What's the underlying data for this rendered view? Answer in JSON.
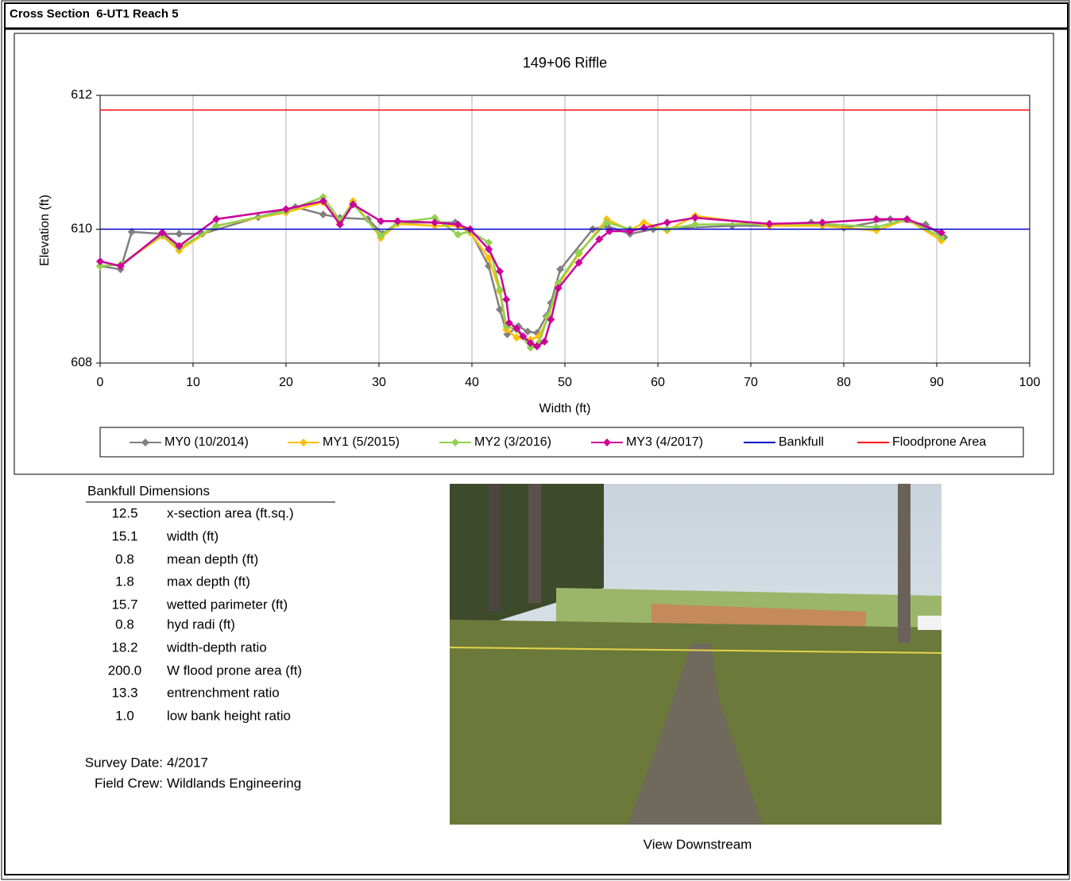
{
  "header": {
    "title": "Cross Section  6-UT1 Reach 5"
  },
  "chart_data": {
    "type": "line",
    "title": "149+06 Riffle",
    "x_label": "Width (ft)",
    "y_label": "Elevation (ft)",
    "xlim": [
      0,
      100
    ],
    "xticks": [
      0,
      10,
      20,
      30,
      40,
      50,
      60,
      70,
      80,
      90,
      100
    ],
    "ylim": [
      608,
      612
    ],
    "yticks": [
      608,
      610,
      612
    ],
    "grid": "x",
    "legend": "bottom",
    "series": [
      {
        "name": "MY0 (10/2014)",
        "color": "#808080",
        "marker": "diamond",
        "x": [
          0,
          2.2,
          3.4,
          6.7,
          8.5,
          11,
          17,
          21,
          24,
          25.8,
          28.8,
          30.4,
          32,
          38.2,
          39.8,
          41.8,
          43,
          43.8,
          45,
          46,
          47,
          48,
          48.5,
          49.5,
          53,
          54.5,
          57,
          59.5,
          68,
          72,
          76.5,
          80,
          85,
          88.8,
          90.8
        ],
        "values": [
          609.45,
          609.4,
          609.96,
          609.93,
          609.93,
          609.93,
          610.18,
          610.33,
          610.22,
          610.17,
          610.15,
          609.93,
          610.1,
          610.1,
          609.98,
          609.45,
          608.8,
          608.43,
          608.55,
          608.47,
          608.45,
          608.7,
          608.9,
          609.4,
          610.0,
          610.05,
          609.93,
          610.0,
          610.05,
          610.05,
          610.1,
          610.02,
          610.15,
          610.07,
          609.88
        ]
      },
      {
        "name": "MY1 (5/2015)",
        "color": "#ffc000",
        "marker": "diamond",
        "x": [
          0,
          2.2,
          6.7,
          8.5,
          12.5,
          20,
          24,
          25.8,
          27.2,
          30.2,
          32,
          36,
          38.5,
          39.8,
          41.8,
          43,
          43.7,
          44.8,
          46.3,
          47.2,
          48.2,
          49.3,
          51.5,
          54.5,
          57,
          58.5,
          61,
          64,
          72,
          77.7,
          83.5,
          86.8,
          90.5
        ],
        "values": [
          609.45,
          609.47,
          609.9,
          609.68,
          610.05,
          610.25,
          610.4,
          610.1,
          610.42,
          609.87,
          610.08,
          610.05,
          610.05,
          609.95,
          609.57,
          609.07,
          608.5,
          608.38,
          608.35,
          608.4,
          608.68,
          609.17,
          609.63,
          610.15,
          609.98,
          610.1,
          609.98,
          610.2,
          610.05,
          610.05,
          609.98,
          610.15,
          609.83
        ]
      },
      {
        "name": "MY2 (3/2016)",
        "color": "#92d050",
        "marker": "diamond",
        "x": [
          0,
          2.2,
          6.7,
          8.5,
          12.5,
          20,
          24,
          25.8,
          27.2,
          30.2,
          32,
          36,
          38.5,
          39.8,
          41.8,
          43,
          43.7,
          44.8,
          46.3,
          47.2,
          48.2,
          49.3,
          51.5,
          54.5,
          57,
          61,
          64,
          72,
          77.7,
          83.5,
          86.8,
          90.5
        ],
        "values": [
          609.45,
          609.47,
          609.92,
          609.72,
          610.05,
          610.27,
          610.48,
          610.13,
          610.38,
          609.9,
          610.1,
          610.17,
          609.92,
          609.97,
          609.8,
          609.1,
          608.55,
          608.5,
          608.23,
          608.3,
          608.7,
          609.2,
          609.65,
          610.1,
          610.0,
          610.0,
          610.07,
          610.08,
          610.08,
          610.03,
          610.15,
          609.88
        ]
      },
      {
        "name": "MY3 (4/2017)",
        "color": "#cc0099",
        "marker": "diamond",
        "x": [
          0,
          2.2,
          6.7,
          8.5,
          12.5,
          20,
          24,
          25.8,
          27.2,
          30.2,
          32,
          36,
          38.5,
          39.8,
          41.8,
          43,
          43.7,
          44,
          44.8,
          45.5,
          46.3,
          47,
          47.8,
          48.5,
          49.3,
          51.5,
          53.7,
          54.8,
          57,
          58.5,
          61,
          64,
          72,
          77.7,
          83.5,
          86.8,
          90.5
        ],
        "values": [
          609.52,
          609.45,
          609.95,
          609.75,
          610.15,
          610.3,
          610.42,
          610.07,
          610.37,
          610.12,
          610.12,
          610.1,
          610.07,
          610.0,
          609.7,
          609.37,
          608.95,
          608.6,
          608.52,
          608.4,
          608.3,
          608.25,
          608.32,
          608.65,
          609.12,
          609.5,
          609.85,
          609.97,
          609.97,
          610.02,
          610.1,
          610.17,
          610.08,
          610.1,
          610.15,
          610.15,
          609.95
        ]
      },
      {
        "name": "Bankfull",
        "color": "#0000cc",
        "marker": "none",
        "x": [
          0,
          100
        ],
        "values": [
          610,
          610
        ]
      },
      {
        "name": "Floodprone Area",
        "color": "#ff0000",
        "marker": "none",
        "x": [
          0,
          100
        ],
        "values": [
          611.78,
          611.78
        ]
      }
    ]
  },
  "dimensions": {
    "title": "Bankfull Dimensions",
    "rows": [
      {
        "value": "12.5",
        "label": "x-section area (ft.sq.)"
      },
      {
        "value": "15.1",
        "label": "width (ft)"
      },
      {
        "value": "0.8",
        "label": "mean depth (ft)"
      },
      {
        "value": "1.8",
        "label": "max depth (ft)"
      },
      {
        "value": "15.7",
        "label": "wetted parimeter (ft)"
      },
      {
        "value": "0.8",
        "label": "hyd radi (ft)"
      },
      {
        "value": "18.2",
        "label": "width-depth ratio"
      },
      {
        "value": "200.0",
        "label": "W flood prone area (ft)"
      },
      {
        "value": "13.3",
        "label": "entrenchment ratio"
      },
      {
        "value": "1.0",
        "label": "low bank height ratio"
      }
    ]
  },
  "survey": {
    "date_label": "Survey Date:",
    "date": "4/2017",
    "crew_label": "Field Crew:",
    "crew": "Wildlands Engineering"
  },
  "photo": {
    "caption": "View Downstream"
  }
}
